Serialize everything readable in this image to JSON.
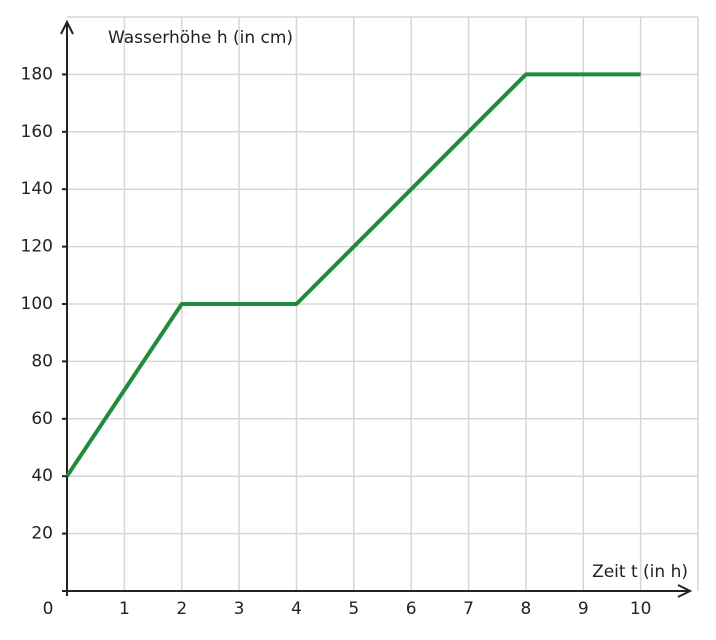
{
  "chart_data": {
    "type": "line",
    "ylabel": "Wasserhöhe h (in cm)",
    "xlabel": "Zeit t (in h)",
    "x": [
      0,
      2,
      4,
      8,
      10
    ],
    "series": [
      {
        "color": "#1e8c3a",
        "values": [
          40,
          100,
          100,
          180,
          180
        ]
      }
    ],
    "xlim": [
      0,
      11
    ],
    "ylim": [
      0,
      200
    ],
    "xticks": [
      0,
      1,
      2,
      3,
      4,
      5,
      6,
      7,
      8,
      9,
      10
    ],
    "yticks": [
      20,
      40,
      60,
      80,
      100,
      120,
      140,
      160,
      180
    ],
    "grid": true
  }
}
